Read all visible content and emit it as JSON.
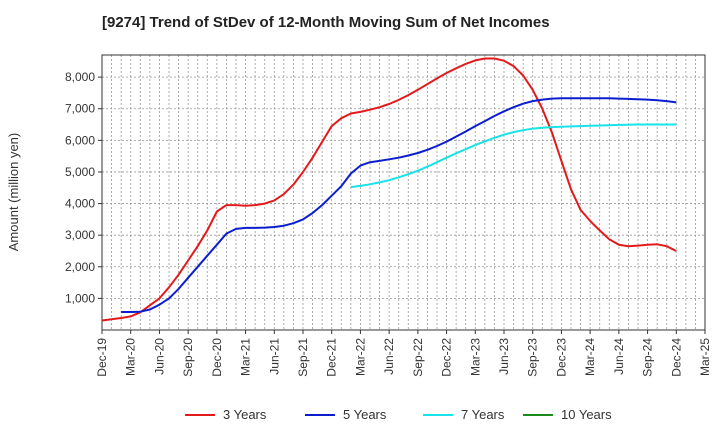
{
  "chart_data": {
    "type": "line",
    "title": "[9274]  Trend of StDev of 12-Month Moving Sum of Net Incomes",
    "xlabel": "",
    "ylabel": "Amount (million yen)",
    "ylim": [
      0,
      8700
    ],
    "y_ticks": [
      "1,000",
      "2,000",
      "3,000",
      "4,000",
      "5,000",
      "6,000",
      "7,000",
      "8,000"
    ],
    "y_tick_values": [
      1000,
      2000,
      3000,
      4000,
      5000,
      6000,
      7000,
      8000
    ],
    "x_ticks": [
      "Dec-19",
      "Mar-20",
      "Jun-20",
      "Sep-20",
      "Dec-20",
      "Mar-21",
      "Jun-21",
      "Sep-21",
      "Dec-21",
      "Mar-22",
      "Jun-22",
      "Sep-22",
      "Dec-22",
      "Mar-23",
      "Jun-23",
      "Sep-23",
      "Dec-23",
      "Mar-24",
      "Jun-24",
      "Sep-24",
      "Dec-24",
      "Mar-25"
    ],
    "grid": true,
    "legend_position": "bottom",
    "series": [
      {
        "name": "3 Years",
        "color": "#e31a1c",
        "x": [
          "2019-12",
          "2020-01",
          "2020-02",
          "2020-03",
          "2020-04",
          "2020-05",
          "2020-06",
          "2020-07",
          "2020-08",
          "2020-09",
          "2020-10",
          "2020-11",
          "2020-12",
          "2021-01",
          "2021-02",
          "2021-03",
          "2021-04",
          "2021-05",
          "2021-06",
          "2021-07",
          "2021-08",
          "2021-09",
          "2021-10",
          "2021-11",
          "2021-12",
          "2022-01",
          "2022-02",
          "2022-03",
          "2022-04",
          "2022-05",
          "2022-06",
          "2022-07",
          "2022-08",
          "2022-09",
          "2022-10",
          "2022-11",
          "2022-12",
          "2023-01",
          "2023-02",
          "2023-03",
          "2023-04",
          "2023-05",
          "2023-06",
          "2023-07",
          "2023-08",
          "2023-09",
          "2023-10",
          "2023-11",
          "2023-12",
          "2024-01",
          "2024-02",
          "2024-03",
          "2024-04",
          "2024-05",
          "2024-06",
          "2024-07",
          "2024-08",
          "2024-09",
          "2024-10",
          "2024-11",
          "2024-12"
        ],
        "values": [
          300,
          340,
          380,
          430,
          560,
          780,
          1000,
          1350,
          1750,
          2200,
          2650,
          3150,
          3750,
          3950,
          3950,
          3930,
          3950,
          4000,
          4100,
          4300,
          4600,
          5000,
          5450,
          5950,
          6450,
          6700,
          6850,
          6900,
          6970,
          7050,
          7150,
          7280,
          7430,
          7600,
          7780,
          7960,
          8130,
          8280,
          8420,
          8530,
          8590,
          8590,
          8520,
          8350,
          8050,
          7600,
          7000,
          6250,
          5350,
          4450,
          3800,
          3450,
          3150,
          2870,
          2700,
          2650,
          2670,
          2700,
          2710,
          2650,
          2500
        ]
      },
      {
        "name": "5 Years",
        "color": "#0a1ecf",
        "x": [
          "2020-02",
          "2020-03",
          "2020-04",
          "2020-05",
          "2020-06",
          "2020-07",
          "2020-08",
          "2020-09",
          "2020-10",
          "2020-11",
          "2020-12",
          "2021-01",
          "2021-02",
          "2021-03",
          "2021-04",
          "2021-05",
          "2021-06",
          "2021-07",
          "2021-08",
          "2021-09",
          "2021-10",
          "2021-11",
          "2021-12",
          "2022-01",
          "2022-02",
          "2022-03",
          "2022-04",
          "2022-05",
          "2022-06",
          "2022-07",
          "2022-08",
          "2022-09",
          "2022-10",
          "2022-11",
          "2022-12",
          "2023-01",
          "2023-02",
          "2023-03",
          "2023-04",
          "2023-05",
          "2023-06",
          "2023-07",
          "2023-08",
          "2023-09",
          "2023-10",
          "2023-11",
          "2023-12",
          "2024-01",
          "2024-02",
          "2024-03",
          "2024-04",
          "2024-05",
          "2024-06",
          "2024-07",
          "2024-08",
          "2024-09",
          "2024-10",
          "2024-11",
          "2024-12"
        ],
        "values": [
          570,
          570,
          580,
          650,
          800,
          1000,
          1300,
          1650,
          2000,
          2350,
          2700,
          3050,
          3200,
          3230,
          3230,
          3240,
          3260,
          3300,
          3380,
          3500,
          3700,
          3950,
          4250,
          4550,
          4950,
          5200,
          5310,
          5350,
          5400,
          5450,
          5520,
          5600,
          5700,
          5820,
          5960,
          6120,
          6280,
          6450,
          6610,
          6770,
          6920,
          7050,
          7160,
          7240,
          7290,
          7320,
          7330,
          7330,
          7330,
          7330,
          7330,
          7330,
          7320,
          7310,
          7300,
          7290,
          7270,
          7240,
          7200
        ]
      },
      {
        "name": "7 Years",
        "color": "#17e3e8",
        "x": [
          "2022-02",
          "2022-03",
          "2022-04",
          "2022-05",
          "2022-06",
          "2022-07",
          "2022-08",
          "2022-09",
          "2022-10",
          "2022-11",
          "2022-12",
          "2023-01",
          "2023-02",
          "2023-03",
          "2023-04",
          "2023-05",
          "2023-06",
          "2023-07",
          "2023-08",
          "2023-09",
          "2023-10",
          "2023-11",
          "2023-12",
          "2024-01",
          "2024-02",
          "2024-03",
          "2024-04",
          "2024-05",
          "2024-06",
          "2024-07",
          "2024-08",
          "2024-09",
          "2024-10",
          "2024-11",
          "2024-12"
        ],
        "values": [
          4520,
          4560,
          4610,
          4670,
          4740,
          4830,
          4930,
          5040,
          5170,
          5310,
          5450,
          5590,
          5720,
          5850,
          5970,
          6080,
          6180,
          6260,
          6320,
          6370,
          6400,
          6420,
          6430,
          6440,
          6450,
          6460,
          6470,
          6480,
          6490,
          6495,
          6500,
          6500,
          6500,
          6500,
          6500
        ]
      },
      {
        "name": "10 Years",
        "color": "#1a8a1a",
        "x": [],
        "values": []
      }
    ]
  }
}
